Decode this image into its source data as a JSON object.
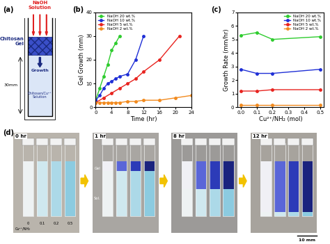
{
  "diagram": {
    "panel": "(a)",
    "naoh": "NaOH\nSolution",
    "gel": "Chitosan\nGel",
    "growth": "Growth",
    "solution": "Chitosan/Cu²⁺\nSolution",
    "height": "30mm"
  },
  "chart_data": [
    {
      "type": "line",
      "panel": "(b)",
      "xlabel": "Time (hr)",
      "ylabel": "Gel Growth (mm)",
      "xlim": [
        0,
        24
      ],
      "xticks": [
        0,
        4,
        8,
        12,
        16,
        20,
        24
      ],
      "ylim": [
        0,
        40
      ],
      "yticks": [
        0,
        10,
        20,
        30,
        40
      ],
      "grid": false,
      "legend": "upper left",
      "series": [
        {
          "name": "NaOH 20 wt.%",
          "color": "#2ecc2e",
          "marker": "circle",
          "line_style": "solid",
          "x": [
            0,
            1,
            2,
            3,
            4,
            5,
            6
          ],
          "values": [
            3,
            8,
            13,
            18,
            24,
            27,
            30
          ]
        },
        {
          "name": "NaOH 10 wt.%",
          "color": "#1f2fd6",
          "marker": "circle",
          "line_style": "solid",
          "x": [
            0,
            1,
            2,
            3,
            4,
            5,
            6,
            8,
            10,
            12
          ],
          "values": [
            3,
            5,
            8,
            10,
            11,
            12,
            13,
            14,
            20,
            30
          ]
        },
        {
          "name": "NaOH 5 wt.%",
          "color": "#e8231f",
          "marker": "circle",
          "line_style": "solid",
          "x": [
            0,
            2,
            4,
            6,
            8,
            10,
            12,
            16,
            21
          ],
          "values": [
            2,
            4,
            6,
            8,
            10,
            12,
            15,
            20,
            30
          ]
        },
        {
          "name": "NaOH 2 wt.%",
          "color": "#f28a1e",
          "marker": "circle",
          "line_style": "solid",
          "x": [
            0,
            1,
            2,
            3,
            4,
            5,
            6,
            8,
            10,
            12,
            16,
            20,
            24
          ],
          "values": [
            2,
            2,
            2,
            2,
            2,
            2,
            2,
            2.5,
            2.5,
            3,
            3,
            4,
            5
          ]
        }
      ]
    },
    {
      "type": "line",
      "panel": "(c)",
      "xlabel": "Cu²⁺/NH₂ (mol)",
      "ylabel": "Growth Rate (mm/hr)",
      "xlim": [
        -0.02,
        0.52
      ],
      "xticks": [
        {
          "value": 0,
          "label": "0.0"
        },
        0.1,
        0.2,
        0.3,
        0.4,
        0.5
      ],
      "ylim": [
        0,
        7
      ],
      "yticks": [
        0,
        1,
        2,
        3,
        4,
        5,
        6,
        7
      ],
      "grid": false,
      "legend": "upper right",
      "x": [
        0,
        0.1,
        0.2,
        0.5
      ],
      "series": [
        {
          "name": "NaOH 20 wt.%",
          "color": "#2ecc2e",
          "marker": "circle",
          "line_style": "solid",
          "values": [
            5.3,
            5.5,
            5.0,
            5.2
          ]
        },
        {
          "name": "NaOH 10 wt.%",
          "color": "#1f2fd6",
          "marker": "circle",
          "line_style": "solid",
          "values": [
            2.8,
            2.5,
            2.5,
            2.8
          ]
        },
        {
          "name": "NaOH 5 wt.%",
          "color": "#e8231f",
          "marker": "circle",
          "line_style": "solid",
          "values": [
            1.2,
            1.2,
            1.3,
            1.3
          ]
        },
        {
          "name": "NaOH 2 wt.%",
          "color": "#f28a1e",
          "marker": "circle",
          "line_style": "solid",
          "values": [
            0.2,
            0.2,
            0.2,
            0.2
          ]
        }
      ]
    }
  ],
  "photos": {
    "panel": "(d)",
    "times": [
      "0 hr",
      "1 hr",
      "8 hr",
      "12 hr"
    ],
    "ratio_label": "Cu²⁺/NH₂",
    "ratios": [
      "0",
      "0.1",
      "0.2",
      "0.5"
    ],
    "gel_label": "Gel",
    "sol_label": "Sol.",
    "scale": "10 mm"
  }
}
